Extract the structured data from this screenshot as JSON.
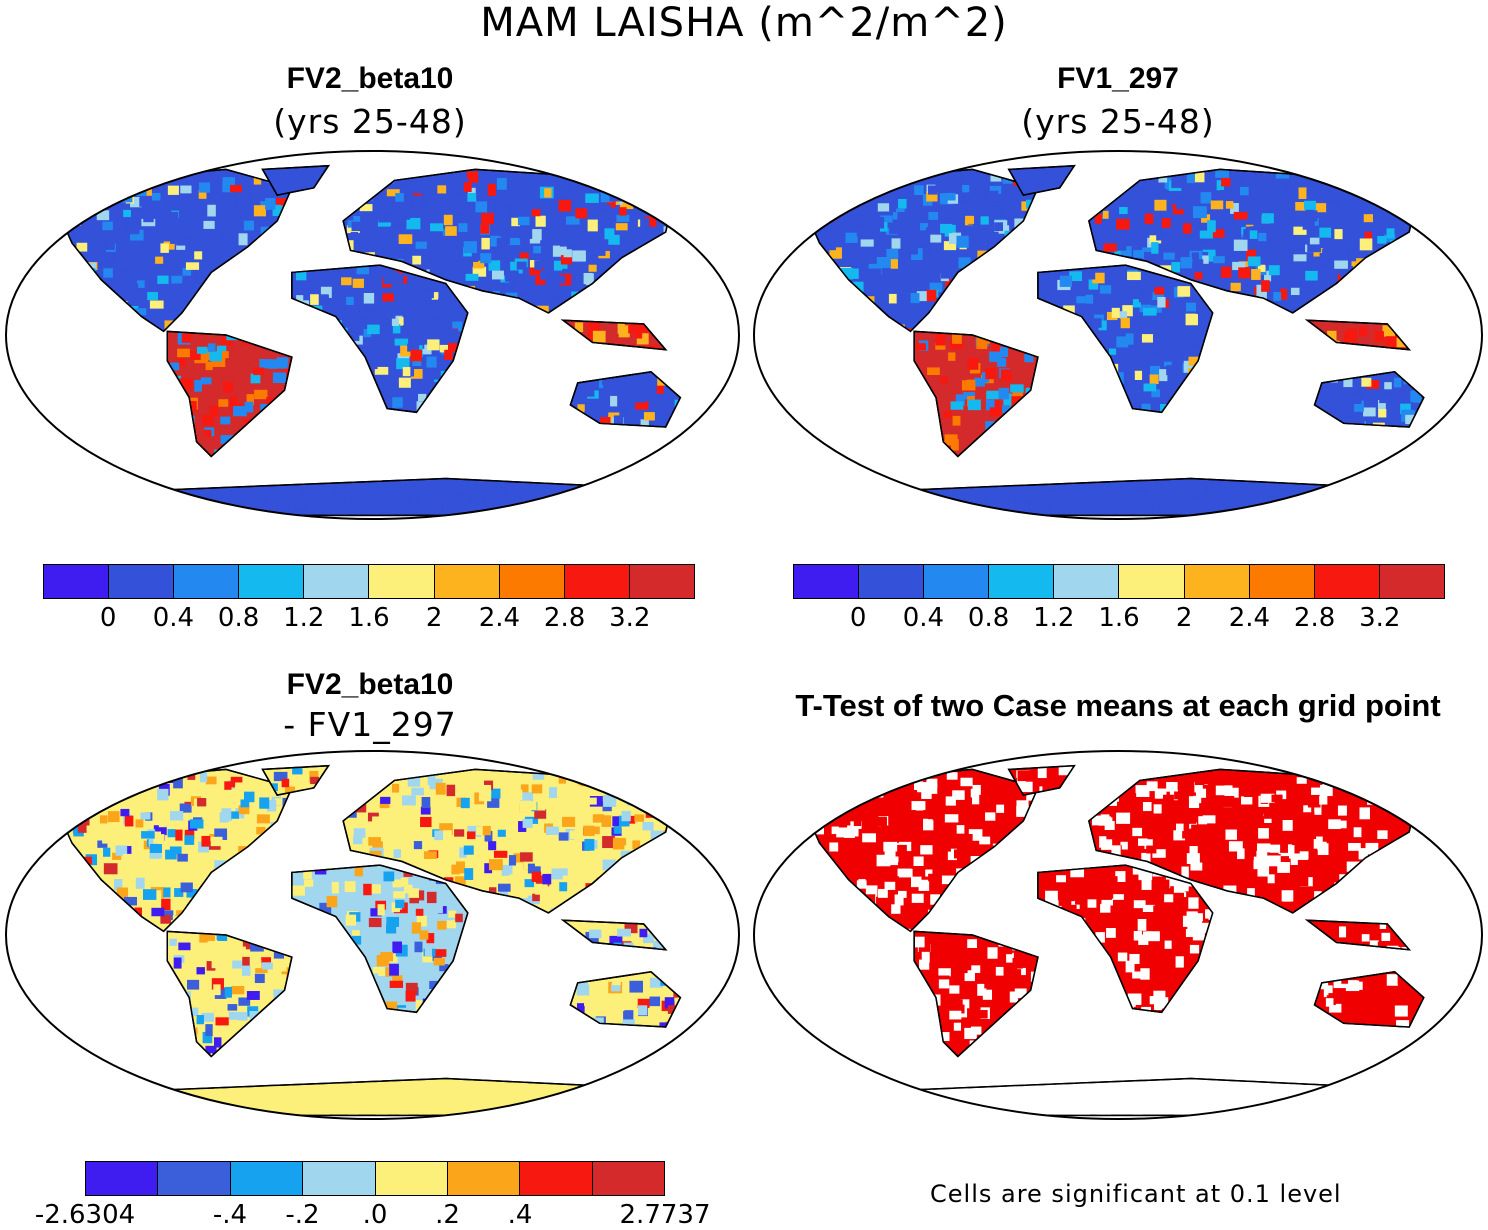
{
  "title": "MAM LAISHA (m^2/m^2)",
  "colors": {
    "abs_scale": [
      "#3f1df0",
      "#3451d9",
      "#2389f0",
      "#14b9ef",
      "#a1d6ef",
      "#fcf07a",
      "#fdb31e",
      "#fd7a00",
      "#f71810",
      "#d42a2b"
    ],
    "diff_scale": [
      "#3f1df0",
      "#3b5edb",
      "#16a2ef",
      "#a1d6ef",
      "#fcf07a",
      "#fba51b",
      "#f71810",
      "#d42a2b"
    ],
    "sig": "#f00000"
  },
  "panels": {
    "tl": {
      "title": "FV2_beta10",
      "subtitle": "(yrs 25-48)"
    },
    "tr": {
      "title": "FV1_297",
      "subtitle": "(yrs 25-48)"
    },
    "bl": {
      "title": "FV2_beta10",
      "subtitle": "- FV1_297"
    },
    "br": {
      "title": "T-Test of two Case means at each grid point",
      "note": "Cells are significant at 0.1 level"
    }
  },
  "chart_data": [
    {
      "type": "heatmap",
      "title": "FV2_beta10 (yrs 25-48)",
      "colorbar_ticks": [
        "0",
        "0.4",
        "0.8",
        "1.2",
        "1.6",
        "2",
        "2.4",
        "2.8",
        "3.2"
      ],
      "legend": "bottom"
    },
    {
      "type": "heatmap",
      "title": "FV1_297 (yrs 25-48)",
      "colorbar_ticks": [
        "0",
        "0.4",
        "0.8",
        "1.2",
        "1.6",
        "2",
        "2.4",
        "2.8",
        "3.2"
      ],
      "legend": "bottom"
    },
    {
      "type": "heatmap",
      "title": "FV2_beta10 - FV1_297",
      "colorbar_ticks": [
        "-2.6304",
        "-.4",
        "-.2",
        ".0",
        ".2",
        ".4",
        "2.7737"
      ],
      "legend": "bottom"
    },
    {
      "type": "heatmap",
      "title": "T-Test of two Case means at each grid point",
      "note": "Cells are significant at 0.1 level"
    }
  ]
}
